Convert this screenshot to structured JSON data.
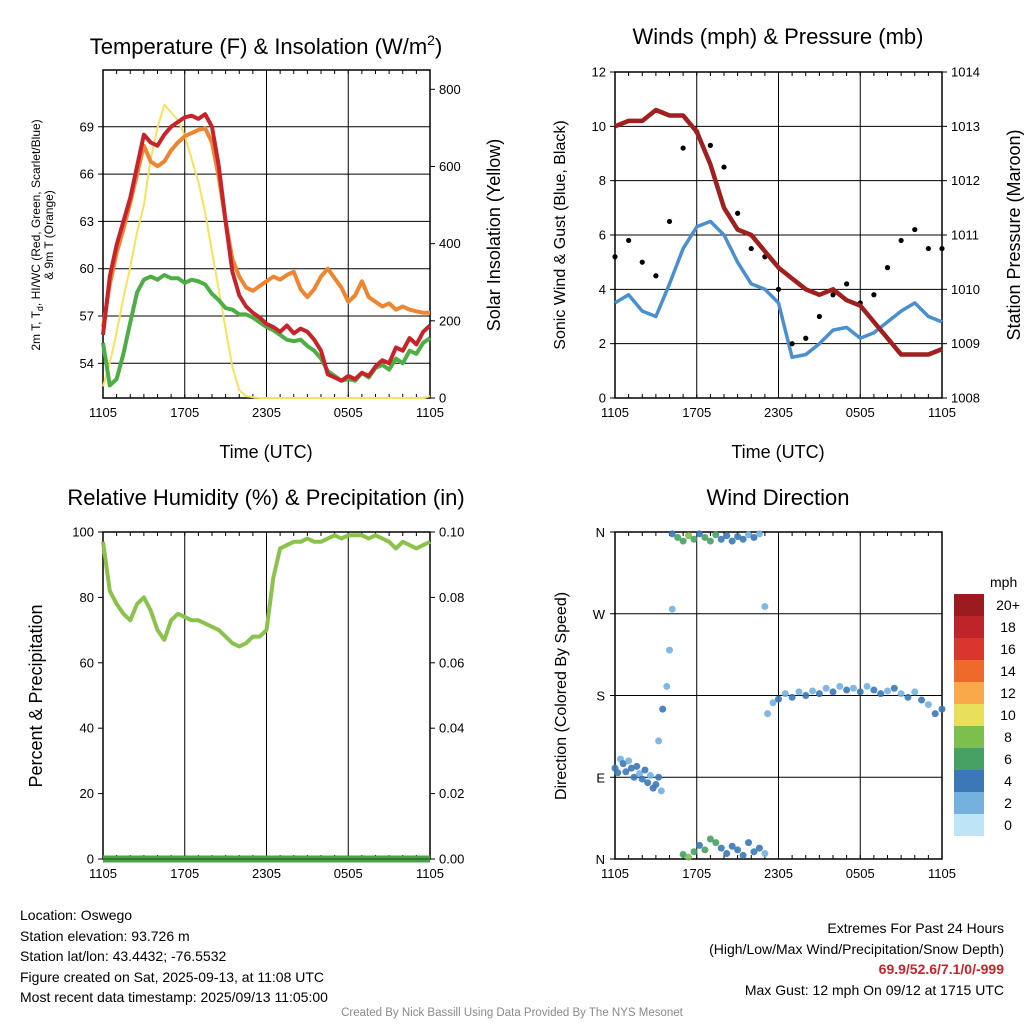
{
  "panels": {
    "temperature": {
      "title": "Temperature (F) & Insolation (W/m",
      "title_sup": "2",
      "title_end": ")",
      "ylabel_left_1": "2m T, T",
      "ylabel_left_sub": "d",
      "ylabel_left_2": ", HI/WC (Red, Green, Scarlet/Blue)",
      "ylabel_left_3": "& 9m T (Orange)",
      "ylabel_right": "Solar Insolation (Yellow)",
      "xlabel": "Time (UTC)"
    },
    "winds": {
      "title": "Winds (mph) & Pressure (mb)",
      "ylabel_left": "Sonic Wind & Gust (Blue, Black)",
      "ylabel_right": "Station Pressure (Maroon)",
      "xlabel": "Time (UTC)"
    },
    "humidity": {
      "title": "Relative Humidity (%) & Precipitation (in)",
      "ylabel_left": "Percent & Precipitation"
    },
    "direction": {
      "title": "Wind Direction",
      "ylabel_left": "Direction (Colored By Speed)",
      "colorbar_unit": "mph",
      "colorbar_labels": [
        "20+",
        "18",
        "16",
        "14",
        "12",
        "10",
        "8",
        "6",
        "4",
        "2",
        "0"
      ],
      "colorbar_colors": [
        "#9b1b1e",
        "#c0242b",
        "#d9372d",
        "#ee6a2a",
        "#f9a84a",
        "#e8e05a",
        "#7cbf4f",
        "#47a064",
        "#3b78b5",
        "#74b1df",
        "#bde4f7"
      ]
    }
  },
  "footer": {
    "location": "Location: Oswego",
    "elevation": "Station elevation: 93.726 m",
    "latlon": "Station lat/lon: 43.4432; -76.5532",
    "created": "Figure created on Sat, 2025-09-13, at 11:08 UTC",
    "recent": "Most recent data timestamp: 2025/09/13 11:05:00",
    "extremes_title": "Extremes For Past 24 Hours",
    "extremes_sub": "(High/Low/Max Wind/Precipitation/Snow Depth)",
    "extremes_values": "69.9/52.6/7.1/0/-999",
    "max_gust": "Max Gust: 12 mph On 09/12 at 1715 UTC",
    "credit": "Created By Nick Bassill Using Data Provided By The NYS Mesonet"
  },
  "chart_data": [
    {
      "type": "line",
      "title": "Temperature (F) & Insolation (W/m2)",
      "xlabel": "Time (UTC)",
      "ylabel": "2m T, Td, HI/WC (Red, Green, Scarlet/Blue) & 9m T (Orange)",
      "ylabel_right": "Solar Insolation (Yellow)",
      "x_ticks": [
        "1105",
        "1705",
        "2305",
        "0505",
        "1105"
      ],
      "y_ticks": [
        54,
        57,
        60,
        63,
        66,
        69
      ],
      "ylim": [
        51.8,
        72.6
      ],
      "y_right_ticks": [
        0,
        200,
        400,
        600,
        800
      ],
      "y_right_lim": [
        0,
        850
      ],
      "x": [
        0,
        0.5,
        1,
        1.5,
        2,
        2.5,
        3,
        3.5,
        4,
        4.5,
        5,
        5.5,
        6,
        6.5,
        7,
        7.5,
        8,
        8.5,
        9,
        9.5,
        10,
        10.5,
        11,
        11.5,
        12,
        12.5,
        13,
        13.5,
        14,
        14.5,
        15,
        15.5,
        16,
        16.5,
        17,
        17.5,
        18,
        18.5,
        19,
        19.5,
        20,
        20.5,
        21,
        21.5,
        22,
        22.5,
        23,
        23.5,
        24
      ],
      "series": [
        {
          "name": "2m T",
          "color": "#c8232b",
          "axis": "left",
          "values": [
            55.8,
            59.5,
            61.5,
            63.0,
            64.5,
            66.5,
            68.5,
            68.0,
            67.8,
            68.5,
            69.0,
            69.3,
            69.6,
            69.7,
            69.5,
            69.8,
            69.0,
            66.5,
            63.0,
            59.8,
            58.3,
            57.6,
            57.2,
            56.9,
            56.5,
            56.3,
            56.0,
            56.4,
            55.9,
            56.2,
            56.0,
            55.5,
            54.8,
            53.3,
            53.1,
            52.9,
            53.2,
            53.0,
            53.4,
            53.2,
            53.8,
            54.2,
            54.0,
            55.0,
            54.8,
            55.6,
            55.2,
            56.0,
            56.4
          ]
        },
        {
          "name": "9m T",
          "color": "#ef8530",
          "axis": "left",
          "values": [
            56.3,
            59.0,
            61.0,
            62.5,
            64.2,
            66.0,
            67.8,
            66.8,
            66.5,
            66.8,
            67.5,
            68.0,
            68.4,
            68.6,
            68.8,
            68.9,
            68.0,
            65.8,
            63.0,
            60.6,
            59.5,
            58.8,
            58.6,
            58.9,
            59.2,
            59.5,
            59.3,
            59.6,
            59.8,
            58.7,
            58.2,
            58.7,
            59.5,
            60.0,
            59.4,
            58.8,
            57.9,
            58.3,
            59.2,
            58.2,
            57.9,
            57.6,
            57.8,
            57.4,
            57.6,
            57.4,
            57.3,
            57.2,
            57.2
          ]
        },
        {
          "name": "Td",
          "color": "#4cae45",
          "axis": "left",
          "values": [
            55.3,
            52.6,
            53.0,
            54.6,
            56.6,
            58.5,
            59.3,
            59.5,
            59.3,
            59.6,
            59.4,
            59.4,
            59.1,
            59.3,
            59.2,
            59.0,
            58.4,
            58.0,
            57.5,
            57.4,
            57.1,
            57.1,
            56.9,
            56.6,
            56.3,
            56.1,
            55.8,
            55.5,
            55.4,
            55.5,
            55.1,
            54.8,
            54.3,
            53.5,
            53.2,
            52.9,
            53.0,
            52.9,
            53.4,
            53.1,
            53.7,
            53.9,
            53.6,
            54.3,
            54.0,
            54.8,
            54.6,
            55.3,
            55.6
          ]
        },
        {
          "name": "Solar Insolation",
          "color": "#f5e35c",
          "axis": "right",
          "values": [
            30,
            90,
            170,
            260,
            340,
            430,
            500,
            620,
            700,
            760,
            740,
            720,
            680,
            620,
            560,
            480,
            380,
            280,
            180,
            80,
            20,
            5,
            2,
            0,
            0,
            0,
            0,
            0,
            0,
            0,
            0,
            0,
            0,
            0,
            0,
            0,
            0,
            0,
            0,
            0,
            0,
            0,
            0,
            0,
            0,
            0,
            0,
            0,
            5
          ]
        }
      ]
    },
    {
      "type": "scatter",
      "title": "Winds (mph) & Pressure (mb)",
      "xlabel": "Time (UTC)",
      "ylabel": "Sonic Wind & Gust (Blue, Black)",
      "ylabel_right": "Station Pressure (Maroon)",
      "x_ticks": [
        "1105",
        "1705",
        "2305",
        "0505",
        "1105"
      ],
      "y_ticks": [
        0,
        2,
        4,
        6,
        8,
        10,
        12
      ],
      "ylim": [
        0,
        12
      ],
      "y_right_ticks": [
        1008,
        1009,
        1010,
        1011,
        1012,
        1013,
        1014
      ],
      "y_right_lim": [
        1008,
        1014
      ],
      "x": [
        0,
        1,
        2,
        3,
        4,
        5,
        6,
        7,
        8,
        9,
        10,
        11,
        12,
        13,
        14,
        15,
        16,
        17,
        18,
        19,
        20,
        21,
        22,
        23,
        24
      ],
      "series": [
        {
          "name": "Sonic Wind",
          "color": "#4a90d0",
          "axis": "left",
          "values": [
            3.5,
            3.8,
            3.2,
            3.0,
            4.2,
            5.5,
            6.3,
            6.5,
            6.0,
            5.0,
            4.2,
            4.0,
            3.5,
            1.5,
            1.6,
            2.0,
            2.5,
            2.6,
            2.2,
            2.4,
            2.8,
            3.2,
            3.5,
            3.0,
            2.8
          ]
        },
        {
          "name": "Gust",
          "color": "#000000",
          "axis": "left",
          "values": [
            5.2,
            5.8,
            5.0,
            4.5,
            6.5,
            9.2,
            9.8,
            9.3,
            8.5,
            6.8,
            5.5,
            5.2,
            4.0,
            2.0,
            2.2,
            3.0,
            3.8,
            4.2,
            3.5,
            3.8,
            4.8,
            5.8,
            6.2,
            5.5,
            5.5
          ]
        },
        {
          "name": "Station Pressure",
          "color": "#a01f1f",
          "axis": "right",
          "values": [
            1013.0,
            1013.1,
            1013.1,
            1013.3,
            1013.2,
            1013.2,
            1012.9,
            1012.3,
            1011.5,
            1011.1,
            1011.0,
            1010.7,
            1010.4,
            1010.2,
            1010.0,
            1009.9,
            1010.0,
            1009.8,
            1009.7,
            1009.4,
            1009.1,
            1008.8,
            1008.8,
            1008.8,
            1008.9
          ]
        }
      ]
    },
    {
      "type": "line",
      "title": "Relative Humidity (%) & Precipitation (in)",
      "ylabel": "Percent & Precipitation",
      "x_ticks": [
        "1105",
        "1705",
        "2305",
        "0505",
        "1105"
      ],
      "y_ticks": [
        0,
        20,
        40,
        60,
        80,
        100
      ],
      "ylim": [
        0,
        100
      ],
      "y_right_ticks": [
        "0.00",
        "0.02",
        "0.04",
        "0.06",
        "0.08",
        "0.10"
      ],
      "y_right_lim": [
        0,
        0.1
      ],
      "x": [
        0,
        0.5,
        1,
        1.5,
        2,
        2.5,
        3,
        3.5,
        4,
        4.5,
        5,
        5.5,
        6,
        6.5,
        7,
        7.5,
        8,
        8.5,
        9,
        9.5,
        10,
        10.5,
        11,
        11.5,
        12,
        12.5,
        13,
        13.5,
        14,
        14.5,
        15,
        15.5,
        16,
        16.5,
        17,
        17.5,
        18,
        18.5,
        19,
        19.5,
        20,
        20.5,
        21,
        21.5,
        22,
        22.5,
        23,
        23.5,
        24
      ],
      "series": [
        {
          "name": "Relative Humidity",
          "color": "#8bc34a",
          "axis": "left",
          "values": [
            97,
            82,
            78,
            75,
            73,
            78,
            80,
            76,
            70,
            67,
            73,
            75,
            74,
            73,
            73,
            72,
            71,
            70,
            68,
            66,
            65,
            66,
            68,
            68,
            70,
            86,
            95,
            96,
            97,
            97,
            98,
            97,
            97,
            98,
            99,
            98,
            99,
            99,
            99,
            98,
            99,
            98,
            97,
            95,
            97,
            96,
            95,
            96,
            97
          ]
        },
        {
          "name": "Precipitation",
          "color": "#2e7d32",
          "axis": "right",
          "values": [
            0,
            0,
            0,
            0,
            0,
            0,
            0,
            0,
            0,
            0,
            0,
            0,
            0,
            0,
            0,
            0,
            0,
            0,
            0,
            0,
            0,
            0,
            0,
            0,
            0,
            0,
            0,
            0,
            0,
            0,
            0,
            0,
            0,
            0,
            0,
            0,
            0,
            0,
            0,
            0,
            0,
            0,
            0,
            0,
            0,
            0,
            0,
            0,
            0
          ]
        }
      ]
    },
    {
      "type": "scatter",
      "title": "Wind Direction",
      "ylabel": "Direction (Colored By Speed)",
      "x_ticks": [
        "1105",
        "1705",
        "2305",
        "0505",
        "1105"
      ],
      "y_ticks": [
        "N",
        "E",
        "S",
        "W",
        "N"
      ],
      "ylim": [
        0,
        360
      ],
      "points": [
        [
          0.0,
          100,
          3
        ],
        [
          0.2,
          95,
          3
        ],
        [
          0.4,
          110,
          2
        ],
        [
          0.6,
          105,
          4
        ],
        [
          0.8,
          96,
          3
        ],
        [
          1.0,
          108,
          2
        ],
        [
          1.2,
          100,
          4
        ],
        [
          1.4,
          90,
          3
        ],
        [
          1.6,
          102,
          4
        ],
        [
          1.8,
          94,
          2
        ],
        [
          2.0,
          88,
          3
        ],
        [
          2.2,
          98,
          4
        ],
        [
          2.4,
          84,
          3
        ],
        [
          2.6,
          92,
          2
        ],
        [
          2.8,
          78,
          3
        ],
        [
          3.0,
          82,
          4
        ],
        [
          3.2,
          90,
          3
        ],
        [
          3.4,
          75,
          2
        ],
        [
          3.2,
          130,
          2
        ],
        [
          3.5,
          165,
          3
        ],
        [
          3.8,
          190,
          2
        ],
        [
          4.0,
          230,
          2
        ],
        [
          4.2,
          275,
          2
        ],
        [
          4.2,
          358,
          4
        ],
        [
          4.6,
          354,
          5
        ],
        [
          5.0,
          350,
          6
        ],
        [
          5.4,
          356,
          7
        ],
        [
          5.8,
          352,
          6
        ],
        [
          6.2,
          358,
          4
        ],
        [
          6.6,
          354,
          5
        ],
        [
          7.0,
          350,
          6
        ],
        [
          7.4,
          357,
          5
        ],
        [
          7.8,
          352,
          3
        ],
        [
          8.2,
          356,
          4
        ],
        [
          8.6,
          350,
          3
        ],
        [
          9.0,
          355,
          4
        ],
        [
          9.4,
          352,
          3
        ],
        [
          9.8,
          357,
          2
        ],
        [
          10.2,
          354,
          3
        ],
        [
          10.6,
          358,
          2
        ],
        [
          5.0,
          5,
          6
        ],
        [
          5.4,
          2,
          7
        ],
        [
          5.8,
          8,
          6
        ],
        [
          6.2,
          15,
          4
        ],
        [
          6.6,
          10,
          5
        ],
        [
          7.0,
          22,
          6
        ],
        [
          7.4,
          18,
          5
        ],
        [
          7.8,
          12,
          4
        ],
        [
          8.2,
          6,
          3
        ],
        [
          8.6,
          14,
          4
        ],
        [
          9.0,
          10,
          3
        ],
        [
          9.4,
          4,
          3
        ],
        [
          9.8,
          18,
          4
        ],
        [
          10.2,
          8,
          3
        ],
        [
          10.6,
          12,
          3
        ],
        [
          11.0,
          6,
          2
        ],
        [
          11.0,
          278,
          2
        ],
        [
          11.2,
          160,
          2
        ],
        [
          11.6,
          172,
          2
        ],
        [
          12.0,
          176,
          3
        ],
        [
          12.5,
          182,
          2
        ],
        [
          13.0,
          178,
          3
        ],
        [
          13.5,
          184,
          2
        ],
        [
          14.0,
          180,
          3
        ],
        [
          14.5,
          185,
          2
        ],
        [
          15.0,
          182,
          3
        ],
        [
          15.5,
          188,
          2
        ],
        [
          16.0,
          184,
          3
        ],
        [
          16.5,
          190,
          2
        ],
        [
          17.0,
          186,
          3
        ],
        [
          17.5,
          188,
          2
        ],
        [
          18.0,
          184,
          3
        ],
        [
          18.5,
          190,
          2
        ],
        [
          19.0,
          186,
          3
        ],
        [
          19.5,
          182,
          3
        ],
        [
          20.0,
          185,
          2
        ],
        [
          20.5,
          188,
          3
        ],
        [
          21.0,
          182,
          2
        ],
        [
          21.5,
          178,
          3
        ],
        [
          22.0,
          184,
          2
        ],
        [
          22.5,
          175,
          3
        ],
        [
          23.0,
          170,
          2
        ],
        [
          23.5,
          160,
          3
        ],
        [
          24.0,
          165,
          3
        ]
      ]
    }
  ]
}
